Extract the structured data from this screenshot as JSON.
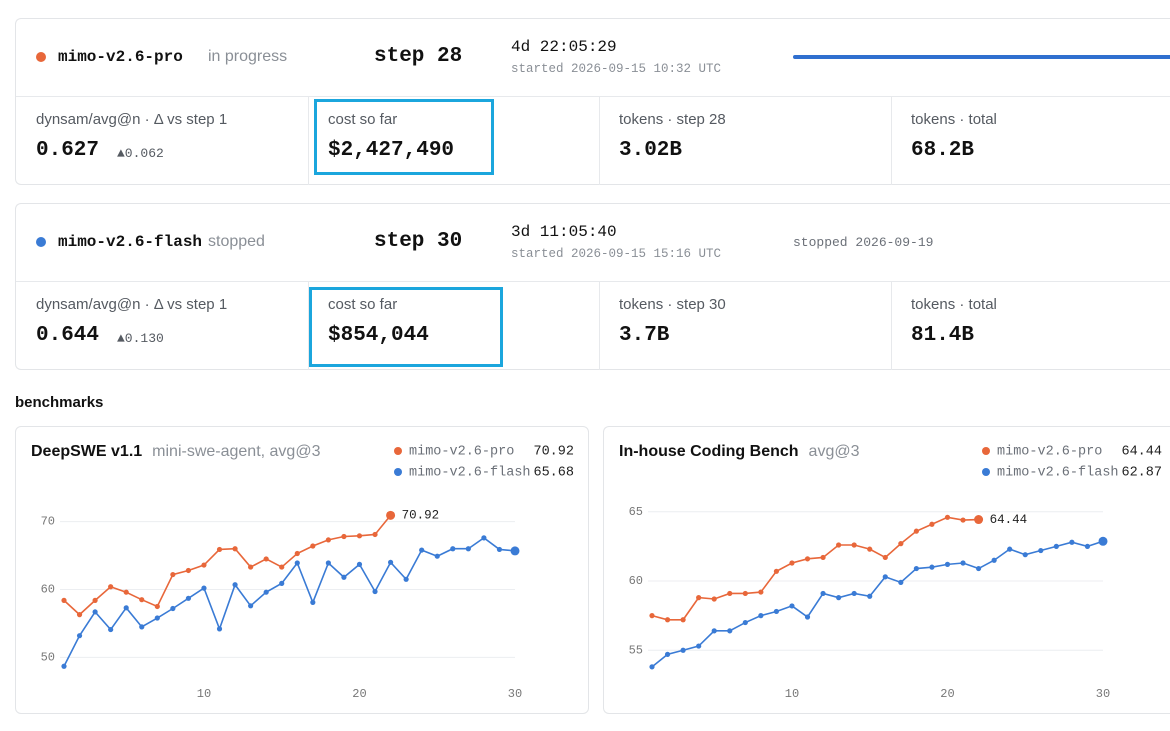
{
  "runs": [
    {
      "name": "mimo-v2.6-pro",
      "color": "#e8673a",
      "status": "in progress",
      "step": "step 28",
      "elapsed": "4d 22:05:29",
      "started": "started 2026-09-15 10:32 UTC",
      "metrics": [
        {
          "label": "dynsam/avg@n · Δ vs step 1",
          "value": "0.627",
          "delta": "▲0.062"
        },
        {
          "label": "cost so far",
          "value": "$2,427,490"
        },
        {
          "label": "tokens · step 28",
          "value": "3.02B"
        },
        {
          "label": "tokens · total",
          "value": "68.2B"
        }
      ]
    },
    {
      "name": "mimo-v2.6-flash",
      "color": "#3a7bd5",
      "status": "stopped",
      "step": "step 30",
      "elapsed": "3d 11:05:40",
      "started": "started 2026-09-15 15:16 UTC",
      "stopped": "stopped 2026-09-19",
      "metrics": [
        {
          "label": "dynsam/avg@n · Δ vs step 1",
          "value": "0.644",
          "delta": "▲0.130"
        },
        {
          "label": "cost so far",
          "value": "$854,044"
        },
        {
          "label": "tokens · step 30",
          "value": "3.7B"
        },
        {
          "label": "tokens · total",
          "value": "81.4B"
        }
      ]
    }
  ],
  "section_title": "benchmarks",
  "chart_data": [
    {
      "type": "line",
      "title": "DeepSWE v1.1",
      "subtitle": "mini-swe-agent, avg@3",
      "x": [
        1,
        2,
        3,
        4,
        5,
        6,
        7,
        8,
        9,
        10,
        11,
        12,
        13,
        14,
        15,
        16,
        17,
        18,
        19,
        20,
        21,
        22,
        23,
        24,
        25,
        26,
        27,
        28,
        29,
        30
      ],
      "xlim": [
        1,
        30
      ],
      "xticks": [
        10,
        20,
        30
      ],
      "ylim": [
        48,
        74.5
      ],
      "yticks": [
        50,
        60,
        70
      ],
      "grid": true,
      "series": [
        {
          "name": "mimo-v2.6-pro",
          "color": "#e8673a",
          "end_label": true,
          "values": [
            58.4,
            56.3,
            58.4,
            60.4,
            59.6,
            58.5,
            57.5,
            62.2,
            62.8,
            63.6,
            65.9,
            66.0,
            63.3,
            64.5,
            63.3,
            65.3,
            66.4,
            67.3,
            67.8,
            67.9,
            68.1,
            70.92,
            null,
            null,
            null,
            null,
            null,
            null,
            null,
            null
          ]
        },
        {
          "name": "mimo-v2.6-flash",
          "color": "#3a7bd5",
          "end_label": false,
          "values": [
            48.7,
            53.2,
            56.7,
            54.1,
            57.3,
            54.5,
            55.8,
            57.2,
            58.7,
            60.2,
            54.2,
            60.7,
            57.6,
            59.6,
            60.9,
            63.9,
            58.1,
            63.9,
            61.8,
            63.7,
            59.7,
            64.0,
            61.5,
            65.8,
            64.9,
            66.0,
            66.0,
            67.6,
            65.9,
            65.68
          ]
        }
      ]
    },
    {
      "type": "line",
      "title": "In-house Coding Bench",
      "subtitle": "avg@3",
      "x": [
        1,
        2,
        3,
        4,
        5,
        6,
        7,
        8,
        9,
        10,
        11,
        12,
        13,
        14,
        15,
        16,
        17,
        18,
        19,
        20,
        21,
        22,
        23,
        24,
        25,
        26,
        27,
        28,
        29,
        30
      ],
      "xlim": [
        1,
        30
      ],
      "xticks": [
        10,
        20,
        30
      ],
      "ylim": [
        53.5,
        66.5
      ],
      "yticks": [
        55,
        60,
        65
      ],
      "grid": true,
      "series": [
        {
          "name": "mimo-v2.6-pro",
          "color": "#e8673a",
          "end_label": true,
          "values": [
            57.5,
            57.2,
            57.2,
            58.8,
            58.7,
            59.1,
            59.1,
            59.2,
            60.7,
            61.3,
            61.6,
            61.7,
            62.6,
            62.6,
            62.3,
            61.7,
            62.7,
            63.6,
            64.1,
            64.6,
            64.4,
            64.44,
            null,
            null,
            null,
            null,
            null,
            null,
            null,
            null
          ]
        },
        {
          "name": "mimo-v2.6-flash",
          "color": "#3a7bd5",
          "end_label": false,
          "values": [
            53.8,
            54.7,
            55.0,
            55.3,
            56.4,
            56.4,
            57.0,
            57.5,
            57.8,
            58.2,
            57.4,
            59.1,
            58.8,
            59.1,
            58.9,
            60.3,
            59.9,
            60.9,
            61.0,
            61.2,
            61.3,
            60.9,
            61.5,
            62.3,
            61.9,
            62.2,
            62.5,
            62.8,
            62.5,
            62.87
          ]
        }
      ]
    }
  ]
}
